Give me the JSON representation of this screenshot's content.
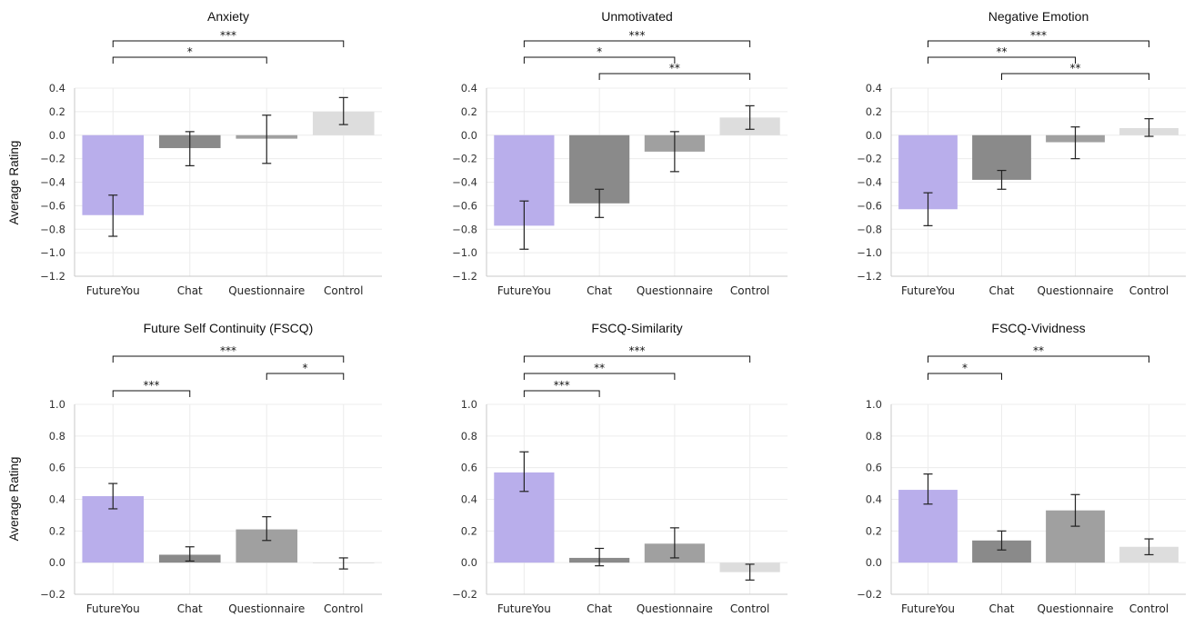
{
  "figure": {
    "ylabel": "Average Rating"
  },
  "chart_data": [
    {
      "type": "bar",
      "title": "Anxiety",
      "categories": [
        "FutureYou",
        "Chat",
        "Questionnaire",
        "Control"
      ],
      "values": [
        -0.68,
        -0.11,
        -0.03,
        0.2
      ],
      "error_low": [
        -0.86,
        -0.26,
        -0.24,
        0.09
      ],
      "error_high": [
        -0.51,
        0.03,
        0.17,
        0.32
      ],
      "colors": [
        "#b9aeeb",
        "#8a8a8a",
        "#a0a0a0",
        "#dddddd"
      ],
      "ylim": [
        -1.2,
        0.4
      ],
      "yticks": [
        0.4,
        0.2,
        0.0,
        -0.2,
        -0.4,
        -0.6,
        -0.8,
        -1.0,
        -1.2
      ],
      "ytick_labels": [
        "0.4",
        "0.2",
        "0.0",
        "−0.2",
        "−0.4",
        "−0.6",
        "−0.8",
        "−1.0",
        "−1.2"
      ],
      "significance": [
        {
          "from": 0,
          "to": 3,
          "label": "***"
        },
        {
          "from": 0,
          "to": 2,
          "label": "*"
        }
      ],
      "grid": true
    },
    {
      "type": "bar",
      "title": "Unmotivated",
      "categories": [
        "FutureYou",
        "Chat",
        "Questionnaire",
        "Control"
      ],
      "values": [
        -0.77,
        -0.58,
        -0.14,
        0.15
      ],
      "error_low": [
        -0.97,
        -0.7,
        -0.31,
        0.05
      ],
      "error_high": [
        -0.56,
        -0.46,
        0.03,
        0.25
      ],
      "colors": [
        "#b9aeeb",
        "#8a8a8a",
        "#a0a0a0",
        "#dddddd"
      ],
      "ylim": [
        -1.2,
        0.4
      ],
      "yticks": [
        0.4,
        0.2,
        0.0,
        -0.2,
        -0.4,
        -0.6,
        -0.8,
        -1.0,
        -1.2
      ],
      "ytick_labels": [
        "0.4",
        "0.2",
        "0.0",
        "−0.2",
        "−0.4",
        "−0.6",
        "−0.8",
        "−1.0",
        "−1.2"
      ],
      "significance": [
        {
          "from": 0,
          "to": 3,
          "label": "***"
        },
        {
          "from": 0,
          "to": 2,
          "label": "*"
        },
        {
          "from": 1,
          "to": 3,
          "label": "**"
        }
      ],
      "grid": true
    },
    {
      "type": "bar",
      "title": "Negative Emotion",
      "categories": [
        "FutureYou",
        "Chat",
        "Questionnaire",
        "Control"
      ],
      "values": [
        -0.63,
        -0.38,
        -0.06,
        0.06
      ],
      "error_low": [
        -0.77,
        -0.46,
        -0.2,
        -0.01
      ],
      "error_high": [
        -0.49,
        -0.3,
        0.07,
        0.14
      ],
      "colors": [
        "#b9aeeb",
        "#8a8a8a",
        "#a0a0a0",
        "#dddddd"
      ],
      "ylim": [
        -1.2,
        0.4
      ],
      "yticks": [
        0.4,
        0.2,
        0.0,
        -0.2,
        -0.4,
        -0.6,
        -0.8,
        -1.0,
        -1.2
      ],
      "ytick_labels": [
        "0.4",
        "0.2",
        "0.0",
        "−0.2",
        "−0.4",
        "−0.6",
        "−0.8",
        "−1.0",
        "−1.2"
      ],
      "significance": [
        {
          "from": 0,
          "to": 3,
          "label": "***"
        },
        {
          "from": 0,
          "to": 2,
          "label": "**"
        },
        {
          "from": 1,
          "to": 3,
          "label": "**"
        }
      ],
      "grid": true
    },
    {
      "type": "bar",
      "title": "Future Self Continuity (FSCQ)",
      "categories": [
        "FutureYou",
        "Chat",
        "Questionnaire",
        "Control"
      ],
      "values": [
        0.42,
        0.05,
        0.21,
        0.0
      ],
      "error_low": [
        0.34,
        0.01,
        0.14,
        -0.04
      ],
      "error_high": [
        0.5,
        0.1,
        0.29,
        0.03
      ],
      "colors": [
        "#b9aeeb",
        "#8a8a8a",
        "#a0a0a0",
        "#dddddd"
      ],
      "ylim": [
        -0.2,
        1.0
      ],
      "yticks": [
        1.0,
        0.8,
        0.6,
        0.4,
        0.2,
        0.0,
        -0.2
      ],
      "ytick_labels": [
        "1.0",
        "0.8",
        "0.6",
        "0.4",
        "0.2",
        "0.0",
        "−0.2"
      ],
      "significance": [
        {
          "from": 0,
          "to": 3,
          "label": "***"
        },
        {
          "from": 2,
          "to": 3,
          "label": "*"
        },
        {
          "from": 0,
          "to": 1,
          "label": "***"
        }
      ],
      "grid": true
    },
    {
      "type": "bar",
      "title": "FSCQ-Similarity",
      "categories": [
        "FutureYou",
        "Chat",
        "Questionnaire",
        "Control"
      ],
      "values": [
        0.57,
        0.03,
        0.12,
        -0.06
      ],
      "error_low": [
        0.45,
        -0.02,
        0.03,
        -0.11
      ],
      "error_high": [
        0.7,
        0.09,
        0.22,
        -0.01
      ],
      "colors": [
        "#b9aeeb",
        "#8a8a8a",
        "#a0a0a0",
        "#dddddd"
      ],
      "ylim": [
        -0.2,
        1.0
      ],
      "yticks": [
        1.0,
        0.8,
        0.6,
        0.4,
        0.2,
        0.0,
        -0.2
      ],
      "ytick_labels": [
        "1.0",
        "0.8",
        "0.6",
        "0.4",
        "0.2",
        "0.0",
        "−0.2"
      ],
      "significance": [
        {
          "from": 0,
          "to": 3,
          "label": "***"
        },
        {
          "from": 0,
          "to": 2,
          "label": "**"
        },
        {
          "from": 0,
          "to": 1,
          "label": "***"
        }
      ],
      "grid": true
    },
    {
      "type": "bar",
      "title": "FSCQ-Vividness",
      "categories": [
        "FutureYou",
        "Chat",
        "Questionnaire",
        "Control"
      ],
      "values": [
        0.46,
        0.14,
        0.33,
        0.1
      ],
      "error_low": [
        0.37,
        0.08,
        0.23,
        0.05
      ],
      "error_high": [
        0.56,
        0.2,
        0.43,
        0.15
      ],
      "colors": [
        "#b9aeeb",
        "#8a8a8a",
        "#a0a0a0",
        "#dddddd"
      ],
      "ylim": [
        -0.2,
        1.0
      ],
      "yticks": [
        1.0,
        0.8,
        0.6,
        0.4,
        0.2,
        0.0,
        -0.2
      ],
      "ytick_labels": [
        "1.0",
        "0.8",
        "0.6",
        "0.4",
        "0.2",
        "0.0",
        "−0.2"
      ],
      "significance": [
        {
          "from": 0,
          "to": 3,
          "label": "**"
        },
        {
          "from": 0,
          "to": 1,
          "label": "*"
        }
      ],
      "grid": true
    }
  ]
}
